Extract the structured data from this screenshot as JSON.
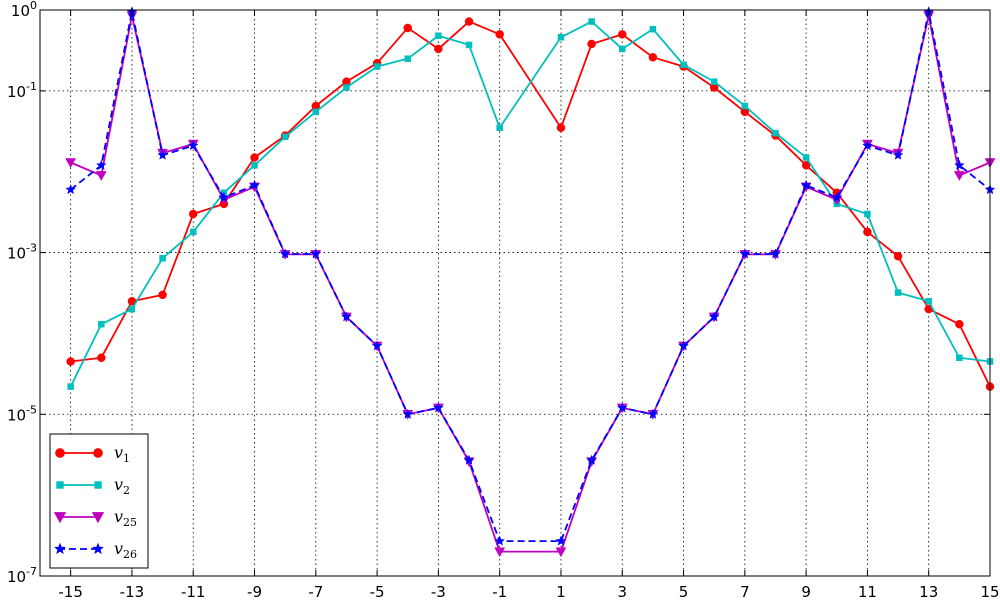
{
  "chart_data": {
    "type": "line",
    "title": "",
    "xlabel": "",
    "ylabel": "",
    "yscale": "log",
    "x": [
      -15,
      -14,
      -13,
      -12,
      -11,
      -10,
      -9,
      -8,
      -7,
      -6,
      -5,
      -4,
      -3,
      -2,
      -1,
      1,
      2,
      3,
      4,
      5,
      6,
      7,
      8,
      9,
      10,
      11,
      12,
      13,
      14,
      15
    ],
    "xlim": [
      -16,
      15
    ],
    "ylim": [
      1e-07,
      1
    ],
    "xticks": [
      -15,
      -13,
      -11,
      -9,
      -7,
      -5,
      -3,
      -1,
      1,
      3,
      5,
      7,
      9,
      11,
      13,
      15
    ],
    "xtick_labels": [
      "-15",
      "-13",
      "-11",
      "-9",
      "-7",
      "-5",
      "-3",
      "-1",
      "1",
      "3",
      "5",
      "7",
      "9",
      "11",
      "13",
      "15"
    ],
    "yticks": [
      1e-07,
      1e-05,
      0.001,
      0.1,
      1
    ],
    "ytick_labels": [
      {
        "base": "10",
        "exp": "-7"
      },
      {
        "base": "10",
        "exp": "-5"
      },
      {
        "base": "10",
        "exp": "-3"
      },
      {
        "base": "10",
        "exp": "-1"
      },
      {
        "base": "10",
        "exp": "0"
      }
    ],
    "grid": true,
    "legend_position": "bottom-left",
    "series": [
      {
        "name": "v",
        "sub": "1",
        "color": "#ff0000",
        "marker": "circle",
        "dash": "solid",
        "values": [
          4.5e-05,
          5e-05,
          0.00025,
          0.0003,
          0.003,
          0.004,
          0.015,
          0.028,
          0.065,
          0.13,
          0.22,
          0.6,
          0.33,
          0.72,
          0.5,
          0.035,
          0.38,
          0.5,
          0.26,
          0.2,
          0.11,
          0.055,
          0.028,
          0.012,
          0.0055,
          0.0018,
          0.0009,
          0.0002,
          0.00013,
          2.2e-05
        ]
      },
      {
        "name": "v",
        "sub": "2",
        "color": "#00bfbf",
        "marker": "square",
        "dash": "solid",
        "values": [
          2.2e-05,
          0.00013,
          0.0002,
          0.00085,
          0.0018,
          0.0055,
          0.012,
          0.027,
          0.055,
          0.11,
          0.2,
          0.25,
          0.48,
          0.37,
          0.035,
          0.46,
          0.72,
          0.33,
          0.58,
          0.21,
          0.13,
          0.065,
          0.03,
          0.015,
          0.004,
          0.003,
          0.00032,
          0.00025,
          5e-05,
          4.5e-05
        ]
      },
      {
        "name": "v",
        "sub": "25",
        "color": "#bf00bf",
        "marker": "triangle-down",
        "dash": "solid",
        "values": [
          0.013,
          0.009,
          0.85,
          0.017,
          0.022,
          0.0045,
          0.0065,
          0.00095,
          0.00095,
          0.00016,
          7e-05,
          1e-05,
          1.2e-05,
          2.6e-06,
          2e-07,
          2e-07,
          2.6e-06,
          1.2e-05,
          1e-05,
          7e-05,
          0.00016,
          0.00095,
          0.00095,
          0.0065,
          0.0045,
          0.022,
          0.017,
          0.85,
          0.009,
          0.013
        ]
      },
      {
        "name": "v",
        "sub": "26",
        "color": "#0000ff",
        "marker": "star",
        "dash": "dashed",
        "values": [
          0.006,
          0.012,
          0.95,
          0.016,
          0.021,
          0.0048,
          0.0068,
          0.00096,
          0.00096,
          0.00016,
          7e-05,
          1e-05,
          1.2e-05,
          2.7e-06,
          2.7e-07,
          2.7e-07,
          2.7e-06,
          1.2e-05,
          1e-05,
          7e-05,
          0.00016,
          0.00096,
          0.00096,
          0.0068,
          0.0048,
          0.021,
          0.016,
          0.95,
          0.012,
          0.006
        ]
      }
    ]
  }
}
